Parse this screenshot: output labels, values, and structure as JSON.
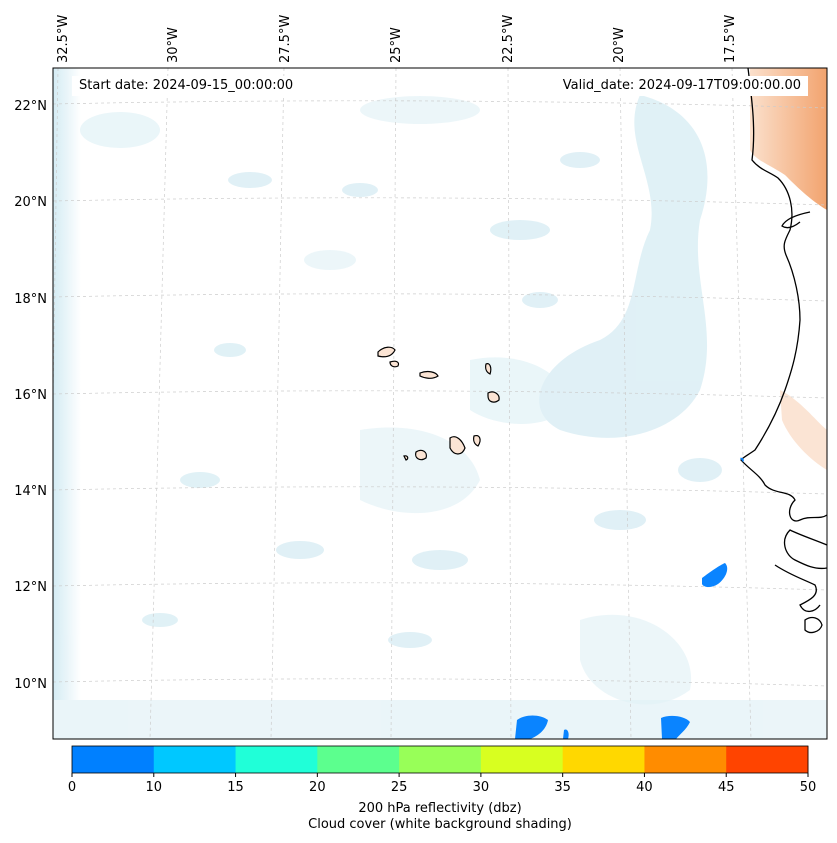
{
  "map": {
    "start_date_text": "Start date: 2024-09-15_00:00:00",
    "valid_date_text": "Valid_date: 2024-09-17T09:00:00.00",
    "lon_labels": [
      "32.5°W",
      "30°W",
      "27.5°W",
      "25°W",
      "22.5°W",
      "20°W",
      "17.5°W"
    ],
    "lat_labels": [
      "22°N",
      "20°N",
      "18°N",
      "16°N",
      "14°N",
      "12°N",
      "10°N"
    ],
    "gridlines": true
  },
  "colorbar": {
    "ticks": [
      "0",
      "10",
      "15",
      "20",
      "25",
      "30",
      "35",
      "40",
      "45",
      "50"
    ],
    "colors": [
      "#0080ff",
      "#00c8ff",
      "#20ffd8",
      "#5cff8e",
      "#98ff58",
      "#d8ff20",
      "#ffd800",
      "#ff8c00",
      "#ff4400"
    ],
    "label_line1": "200 hPa reflectivity (dbz)",
    "label_line2": "Cloud cover (white background shading)"
  }
}
